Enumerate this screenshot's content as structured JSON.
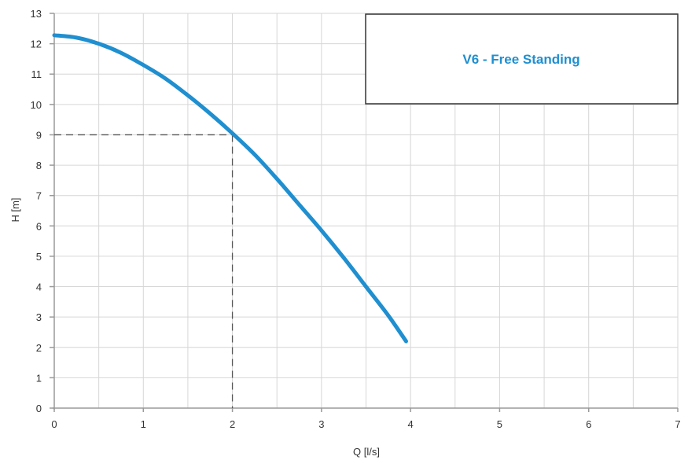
{
  "chart_data": {
    "type": "line",
    "title": "",
    "xlabel": "Q [l/s]",
    "ylabel": "H [m]",
    "xlim": [
      0,
      7
    ],
    "ylim": [
      0,
      13
    ],
    "x_ticks": [
      0,
      1,
      2,
      3,
      4,
      5,
      6,
      7
    ],
    "y_ticks": [
      0,
      1,
      2,
      3,
      4,
      5,
      6,
      7,
      8,
      9,
      10,
      11,
      12,
      13
    ],
    "grid": true,
    "grid_x_step": 0.5,
    "legend_position": "top-right",
    "series": [
      {
        "name": "V6 - Free Standing",
        "color": "#1f8fd0",
        "x": [
          0,
          0.25,
          0.5,
          0.75,
          1.0,
          1.25,
          1.5,
          1.75,
          2.0,
          2.25,
          2.5,
          2.75,
          3.0,
          3.25,
          3.5,
          3.75,
          3.95
        ],
        "y": [
          12.28,
          12.2,
          12.0,
          11.7,
          11.3,
          10.85,
          10.3,
          9.7,
          9.05,
          8.35,
          7.55,
          6.7,
          5.85,
          4.95,
          4.0,
          3.05,
          2.2
        ]
      }
    ],
    "annotations": [
      {
        "type": "dashed-reference",
        "x": 2,
        "y": 9
      }
    ]
  }
}
